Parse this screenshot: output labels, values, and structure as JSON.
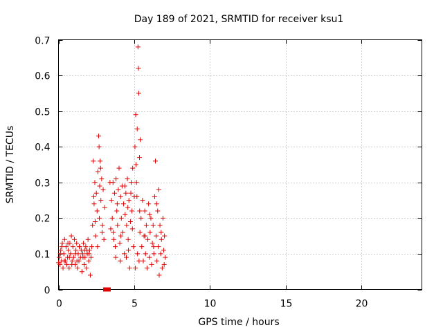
{
  "chart_data": {
    "type": "scatter",
    "title": "Day 189 of 2021, SRMTID for receiver ksu1",
    "xlabel": "GPS time / hours",
    "ylabel": "SRMTID / TECUs",
    "xlim": [
      0,
      24
    ],
    "ylim": [
      0,
      0.7
    ],
    "grid": true,
    "marker": "plus",
    "series_color": "#e00000",
    "xticks": [
      "0",
      "5",
      "10",
      "15",
      "20"
    ],
    "xtick_values": [
      0,
      5,
      10,
      15,
      20
    ],
    "yticks": [
      "0",
      "0.1",
      "0.2",
      "0.3",
      "0.4",
      "0.5",
      "0.6",
      "0.7"
    ],
    "ytick_values": [
      0,
      0.1,
      0.2,
      0.3,
      0.4,
      0.5,
      0.6,
      0.7
    ],
    "flag_band": {
      "x_start": 2.95,
      "x_end": 3.45,
      "y": 0.0,
      "color": "#e00000"
    },
    "series": [
      {
        "name": "SRMTID",
        "points": [
          [
            0.0,
            0.075
          ],
          [
            0.05,
            0.09
          ],
          [
            0.1,
            0.07
          ],
          [
            0.15,
            0.11
          ],
          [
            0.2,
            0.08
          ],
          [
            0.25,
            0.13
          ],
          [
            0.3,
            0.06
          ],
          [
            0.35,
            0.1
          ],
          [
            0.4,
            0.14
          ],
          [
            0.45,
            0.08
          ],
          [
            0.5,
            0.12
          ],
          [
            0.55,
            0.07
          ],
          [
            0.6,
            0.09
          ],
          [
            0.65,
            0.11
          ],
          [
            0.7,
            0.06
          ],
          [
            0.75,
            0.13
          ],
          [
            0.8,
            0.1
          ],
          [
            0.85,
            0.15
          ],
          [
            0.9,
            0.08
          ],
          [
            0.95,
            0.12
          ],
          [
            1.0,
            0.09
          ],
          [
            1.05,
            0.14
          ],
          [
            1.1,
            0.07
          ],
          [
            1.15,
            0.11
          ],
          [
            1.2,
            0.13
          ],
          [
            1.25,
            0.06
          ],
          [
            1.3,
            0.1
          ],
          [
            1.35,
            0.08
          ],
          [
            1.4,
            0.12
          ],
          [
            1.45,
            0.09
          ],
          [
            1.5,
            0.11
          ],
          [
            1.55,
            0.05
          ],
          [
            1.6,
            0.1
          ],
          [
            1.65,
            0.13
          ],
          [
            1.7,
            0.07
          ],
          [
            1.75,
            0.09
          ],
          [
            1.8,
            0.12
          ],
          [
            1.85,
            0.06
          ],
          [
            1.9,
            0.1
          ],
          [
            1.95,
            0.14
          ],
          [
            2.0,
            0.08
          ],
          [
            2.05,
            0.11
          ],
          [
            2.1,
            0.04
          ],
          [
            2.15,
            0.09
          ],
          [
            2.2,
            0.12
          ],
          [
            0.12,
            0.1
          ],
          [
            0.38,
            0.08
          ],
          [
            0.62,
            0.13
          ],
          [
            0.88,
            0.07
          ],
          [
            1.12,
            0.1
          ],
          [
            1.38,
            0.12
          ],
          [
            1.62,
            0.09
          ],
          [
            1.88,
            0.11
          ],
          [
            0.22,
            0.12
          ],
          [
            0.72,
            0.09
          ],
          [
            1.22,
            0.08
          ],
          [
            1.72,
            0.11
          ],
          [
            2.02,
            0.1
          ],
          [
            2.25,
            0.18
          ],
          [
            2.3,
            0.36
          ],
          [
            2.35,
            0.24
          ],
          [
            2.4,
            0.3
          ],
          [
            2.45,
            0.15
          ],
          [
            2.5,
            0.27
          ],
          [
            2.55,
            0.22
          ],
          [
            2.6,
            0.33
          ],
          [
            2.65,
            0.43
          ],
          [
            2.7,
            0.2
          ],
          [
            2.75,
            0.36
          ],
          [
            2.8,
            0.25
          ],
          [
            2.85,
            0.31
          ],
          [
            2.9,
            0.18
          ],
          [
            2.95,
            0.28
          ],
          [
            3.0,
            0.14
          ],
          [
            3.05,
            0.23
          ],
          [
            2.42,
            0.19
          ],
          [
            2.58,
            0.12
          ],
          [
            2.72,
            0.29
          ],
          [
            2.88,
            0.16
          ],
          [
            2.33,
            0.26
          ],
          [
            2.68,
            0.4
          ],
          [
            2.78,
            0.34
          ],
          [
            3.4,
            0.3
          ],
          [
            3.45,
            0.17
          ],
          [
            3.5,
            0.25
          ],
          [
            3.55,
            0.2
          ],
          [
            3.6,
            0.3
          ],
          [
            3.65,
            0.14
          ],
          [
            3.7,
            0.27
          ],
          [
            3.75,
            0.12
          ],
          [
            3.8,
            0.31
          ],
          [
            3.85,
            0.22
          ],
          [
            3.9,
            0.18
          ],
          [
            3.95,
            0.28
          ],
          [
            4.0,
            0.34
          ],
          [
            4.05,
            0.13
          ],
          [
            4.1,
            0.26
          ],
          [
            4.15,
            0.2
          ],
          [
            4.2,
            0.29
          ],
          [
            4.25,
            0.16
          ],
          [
            4.3,
            0.24
          ],
          [
            4.35,
            0.1
          ],
          [
            4.4,
            0.21
          ],
          [
            4.45,
            0.27
          ],
          [
            4.5,
            0.18
          ],
          [
            4.55,
            0.31
          ],
          [
            4.6,
            0.14
          ],
          [
            4.65,
            0.25
          ],
          [
            4.7,
            0.06
          ],
          [
            4.75,
            0.19
          ],
          [
            4.8,
            0.3
          ],
          [
            4.85,
            0.22
          ],
          [
            4.9,
            0.34
          ],
          [
            4.95,
            0.12
          ],
          [
            5.0,
            0.26
          ],
          [
            3.62,
            0.16
          ],
          [
            3.88,
            0.24
          ],
          [
            4.12,
            0.15
          ],
          [
            4.38,
            0.29
          ],
          [
            4.62,
            0.11
          ],
          [
            4.88,
            0.17
          ],
          [
            4.08,
            0.08
          ],
          [
            4.48,
            0.09
          ],
          [
            4.78,
            0.27
          ],
          [
            3.78,
            0.09
          ],
          [
            4.58,
            0.23
          ],
          [
            5.05,
            0.4
          ],
          [
            5.1,
            0.49
          ],
          [
            5.15,
            0.3
          ],
          [
            5.2,
            0.45
          ],
          [
            5.25,
            0.68
          ],
          [
            5.28,
            0.62
          ],
          [
            5.3,
            0.55
          ],
          [
            5.35,
            0.37
          ],
          [
            5.4,
            0.42
          ],
          [
            5.12,
            0.35
          ],
          [
            5.22,
            0.1
          ],
          [
            5.32,
            0.08
          ],
          [
            5.18,
            0.26
          ],
          [
            5.38,
            0.16
          ],
          [
            5.08,
            0.06
          ],
          [
            5.36,
            0.22
          ],
          [
            5.45,
            0.2
          ],
          [
            5.5,
            0.12
          ],
          [
            5.55,
            0.25
          ],
          [
            5.6,
            0.08
          ],
          [
            5.65,
            0.15
          ],
          [
            5.7,
            0.22
          ],
          [
            5.75,
            0.1
          ],
          [
            5.8,
            0.18
          ],
          [
            5.85,
            0.06
          ],
          [
            5.9,
            0.14
          ],
          [
            5.95,
            0.24
          ],
          [
            6.0,
            0.09
          ],
          [
            6.05,
            0.16
          ],
          [
            6.1,
            0.2
          ],
          [
            6.15,
            0.07
          ],
          [
            6.2,
            0.13
          ],
          [
            6.25,
            0.18
          ],
          [
            6.3,
            0.1
          ],
          [
            6.35,
            0.26
          ],
          [
            6.4,
            0.36
          ],
          [
            6.45,
            0.15
          ],
          [
            6.5,
            0.08
          ],
          [
            6.55,
            0.22
          ],
          [
            6.6,
            0.12
          ],
          [
            6.65,
            0.04
          ],
          [
            6.7,
            0.18
          ],
          [
            6.75,
            0.1
          ],
          [
            6.8,
            0.14
          ],
          [
            6.85,
            0.06
          ],
          [
            6.9,
            0.2
          ],
          [
            6.95,
            0.11
          ],
          [
            7.0,
            0.15
          ],
          [
            7.05,
            0.09
          ],
          [
            5.72,
            0.15
          ],
          [
            6.02,
            0.21
          ],
          [
            6.28,
            0.12
          ],
          [
            6.48,
            0.24
          ],
          [
            6.78,
            0.16
          ],
          [
            6.98,
            0.07
          ],
          [
            6.62,
            0.28
          ]
        ]
      }
    ]
  }
}
